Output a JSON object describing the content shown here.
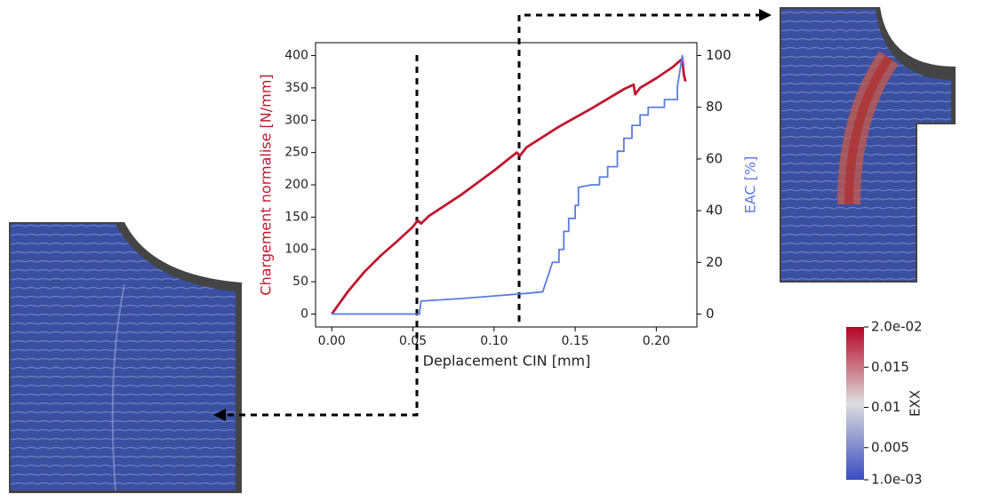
{
  "chart_data": {
    "type": "line",
    "xlabel": "Deplacement CIN [mm]",
    "ylabel": "Chargement normalise [N/mm]",
    "y2label": "EAC [%]",
    "xlim": [
      -0.01,
      0.225
    ],
    "xticks": [
      {
        "value": 0,
        "label": "0.00"
      },
      0.05,
      {
        "value": 0.1,
        "label": "0.10"
      },
      0.15,
      {
        "value": 0.2,
        "label": "0.20"
      }
    ],
    "ylim": [
      -20,
      420
    ],
    "yticks": [
      0,
      50,
      100,
      150,
      200,
      250,
      300,
      350,
      400
    ],
    "y2lim": [
      -5,
      105
    ],
    "y2ticks": [
      0,
      20,
      40,
      60,
      80,
      100
    ],
    "series": [
      {
        "color": "#c0172f",
        "x": [
          0,
          0.01,
          0.02,
          0.03,
          0.04,
          0.05,
          0.053,
          0.055,
          0.06,
          0.08,
          0.1,
          0.114,
          0.116,
          0.12,
          0.14,
          0.16,
          0.18,
          0.186,
          0.187,
          0.19,
          0.2,
          0.21,
          0.216,
          0.217,
          0.218
        ],
        "values": [
          0,
          35,
          65,
          90,
          112,
          135,
          145,
          140,
          152,
          185,
          222,
          250,
          245,
          258,
          290,
          318,
          348,
          355,
          340,
          350,
          365,
          382,
          395,
          370,
          360
        ]
      },
      {
        "color": "#5b7be0",
        "axis": "y2",
        "x": [
          0,
          0.054,
          0.055,
          0.08,
          0.1,
          0.12,
          0.13,
          0.136,
          0.14,
          0.14,
          0.143,
          0.143,
          0.146,
          0.146,
          0.15,
          0.15,
          0.152,
          0.152,
          0.16,
          0.165,
          0.165,
          0.17,
          0.17,
          0.176,
          0.176,
          0.18,
          0.18,
          0.185,
          0.185,
          0.19,
          0.19,
          0.195,
          0.195,
          0.205,
          0.205,
          0.213,
          0.213,
          0.216,
          0.217
        ],
        "values": [
          0,
          0,
          5,
          6,
          7,
          8,
          8.6,
          20,
          20,
          25,
          25,
          32,
          32,
          37,
          37,
          42,
          42,
          49,
          50,
          50,
          53,
          53,
          57,
          57,
          63,
          63,
          68,
          68,
          73,
          73,
          77,
          77,
          80,
          80,
          83,
          83,
          88,
          100,
          96
        ]
      }
    ],
    "colorbar": {
      "label": "EXX",
      "lim": [
        0.001,
        0.02
      ],
      "ticks": [
        {
          "value": 0.02,
          "label": "2.0e-02"
        },
        0.015,
        0.01,
        0.005,
        {
          "value": 0.001,
          "label": "1.0e-03"
        }
      ]
    }
  }
}
